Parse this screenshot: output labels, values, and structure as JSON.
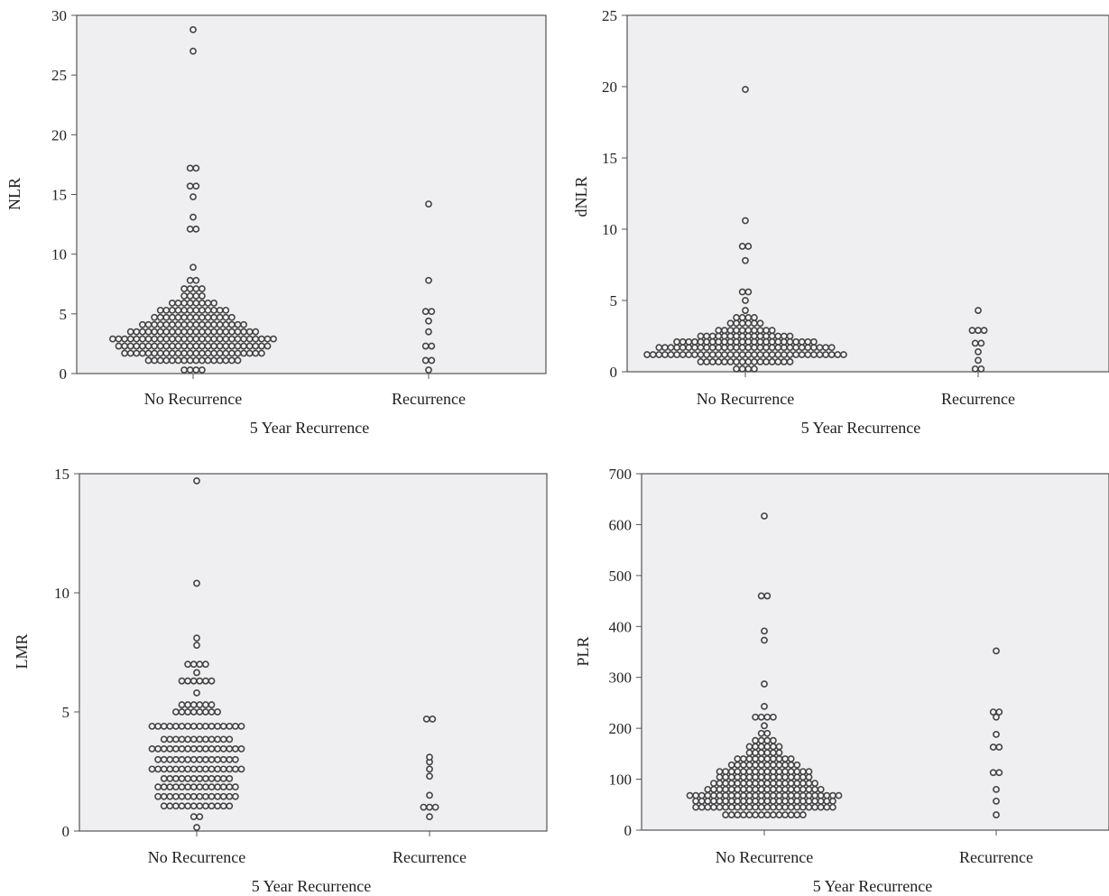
{
  "chart_data": [
    {
      "type": "scatter",
      "title": "",
      "xlabel": "5 Year Recurrence",
      "ylabel": "NLR",
      "categories": [
        "No Recurrence",
        "Recurrence"
      ],
      "ylim": [
        0,
        30
      ],
      "yticks": [
        0,
        5,
        10,
        15,
        20,
        25,
        30
      ],
      "series": [
        {
          "category": "No Recurrence",
          "points": [
            {
              "y": 0.3,
              "n": 4
            },
            {
              "y": 1.1,
              "n": 16
            },
            {
              "y": 1.7,
              "n": 24
            },
            {
              "y": 2.3,
              "n": 26
            },
            {
              "y": 2.9,
              "n": 28
            },
            {
              "y": 3.5,
              "n": 22
            },
            {
              "y": 4.1,
              "n": 18
            },
            {
              "y": 4.7,
              "n": 14
            },
            {
              "y": 5.3,
              "n": 12
            },
            {
              "y": 5.9,
              "n": 8
            },
            {
              "y": 6.5,
              "n": 4
            },
            {
              "y": 7.1,
              "n": 4
            },
            {
              "y": 7.8,
              "n": 2
            },
            {
              "y": 8.9,
              "n": 1
            },
            {
              "y": 12.1,
              "n": 2
            },
            {
              "y": 13.1,
              "n": 1
            },
            {
              "y": 14.8,
              "n": 1
            },
            {
              "y": 15.7,
              "n": 2
            },
            {
              "y": 17.2,
              "n": 2
            },
            {
              "y": 27.0,
              "n": 1
            },
            {
              "y": 28.8,
              "n": 1
            }
          ]
        },
        {
          "category": "Recurrence",
          "points": [
            {
              "y": 0.3,
              "n": 1
            },
            {
              "y": 1.1,
              "n": 2
            },
            {
              "y": 2.3,
              "n": 2
            },
            {
              "y": 3.5,
              "n": 1
            },
            {
              "y": 4.4,
              "n": 1
            },
            {
              "y": 5.2,
              "n": 2
            },
            {
              "y": 7.8,
              "n": 1
            },
            {
              "y": 14.2,
              "n": 1
            }
          ]
        }
      ]
    },
    {
      "type": "scatter",
      "title": "",
      "xlabel": "5 Year Recurrence",
      "ylabel": "dNLR",
      "categories": [
        "No Recurrence",
        "Recurrence"
      ],
      "ylim": [
        0,
        25
      ],
      "yticks": [
        0,
        5,
        10,
        15,
        20,
        25
      ],
      "series": [
        {
          "category": "No Recurrence",
          "points": [
            {
              "y": 0.2,
              "n": 4
            },
            {
              "y": 0.7,
              "n": 16
            },
            {
              "y": 1.2,
              "n": 34
            },
            {
              "y": 1.7,
              "n": 30
            },
            {
              "y": 2.1,
              "n": 24
            },
            {
              "y": 2.5,
              "n": 16
            },
            {
              "y": 2.9,
              "n": 10
            },
            {
              "y": 3.4,
              "n": 6
            },
            {
              "y": 3.8,
              "n": 4
            },
            {
              "y": 4.3,
              "n": 1
            },
            {
              "y": 5.0,
              "n": 1
            },
            {
              "y": 5.6,
              "n": 2
            },
            {
              "y": 7.8,
              "n": 1
            },
            {
              "y": 8.8,
              "n": 2
            },
            {
              "y": 10.6,
              "n": 1
            },
            {
              "y": 19.8,
              "n": 1
            }
          ]
        },
        {
          "category": "Recurrence",
          "points": [
            {
              "y": 0.2,
              "n": 2
            },
            {
              "y": 0.8,
              "n": 1
            },
            {
              "y": 1.4,
              "n": 1
            },
            {
              "y": 2.0,
              "n": 2
            },
            {
              "y": 2.9,
              "n": 3
            },
            {
              "y": 4.3,
              "n": 1
            }
          ]
        }
      ]
    },
    {
      "type": "scatter",
      "title": "",
      "xlabel": "5 Year Recurrence",
      "ylabel": "LMR",
      "categories": [
        "No Recurrence",
        "Recurrence"
      ],
      "ylim": [
        0,
        15
      ],
      "yticks": [
        0,
        5,
        10,
        15
      ],
      "series": [
        {
          "category": "No Recurrence",
          "points": [
            {
              "y": 0.15,
              "n": 1
            },
            {
              "y": 0.6,
              "n": 2
            },
            {
              "y": 1.05,
              "n": 12
            },
            {
              "y": 1.45,
              "n": 14
            },
            {
              "y": 1.85,
              "n": 14
            },
            {
              "y": 2.2,
              "n": 12
            },
            {
              "y": 2.6,
              "n": 16
            },
            {
              "y": 3.0,
              "n": 14
            },
            {
              "y": 3.45,
              "n": 16
            },
            {
              "y": 3.85,
              "n": 12
            },
            {
              "y": 4.4,
              "n": 16
            },
            {
              "y": 5.0,
              "n": 8
            },
            {
              "y": 5.3,
              "n": 6
            },
            {
              "y": 5.8,
              "n": 1
            },
            {
              "y": 6.3,
              "n": 6
            },
            {
              "y": 6.65,
              "n": 1
            },
            {
              "y": 7.0,
              "n": 4
            },
            {
              "y": 7.8,
              "n": 1
            },
            {
              "y": 8.1,
              "n": 1
            },
            {
              "y": 10.4,
              "n": 1
            },
            {
              "y": 14.7,
              "n": 1
            }
          ]
        },
        {
          "category": "Recurrence",
          "points": [
            {
              "y": 0.6,
              "n": 1
            },
            {
              "y": 1.0,
              "n": 3
            },
            {
              "y": 1.5,
              "n": 1
            },
            {
              "y": 2.3,
              "n": 1
            },
            {
              "y": 2.6,
              "n": 1
            },
            {
              "y": 2.9,
              "n": 1
            },
            {
              "y": 3.1,
              "n": 1
            },
            {
              "y": 4.7,
              "n": 2
            }
          ]
        }
      ]
    },
    {
      "type": "scatter",
      "title": "",
      "xlabel": "5 Year Recurrence",
      "ylabel": "PLR",
      "categories": [
        "No Recurrence",
        "Recurrence"
      ],
      "ylim": [
        0,
        700
      ],
      "yticks": [
        0,
        100,
        200,
        300,
        400,
        500,
        600,
        700
      ],
      "series": [
        {
          "category": "No Recurrence",
          "points": [
            {
              "y": 30,
              "n": 14
            },
            {
              "y": 45,
              "n": 24
            },
            {
              "y": 57,
              "n": 24
            },
            {
              "y": 68,
              "n": 26
            },
            {
              "y": 80,
              "n": 20
            },
            {
              "y": 92,
              "n": 18
            },
            {
              "y": 104,
              "n": 16
            },
            {
              "y": 115,
              "n": 16
            },
            {
              "y": 128,
              "n": 12
            },
            {
              "y": 140,
              "n": 10
            },
            {
              "y": 152,
              "n": 6
            },
            {
              "y": 164,
              "n": 6
            },
            {
              "y": 176,
              "n": 4
            },
            {
              "y": 190,
              "n": 2
            },
            {
              "y": 205,
              "n": 1
            },
            {
              "y": 222,
              "n": 4
            },
            {
              "y": 243,
              "n": 1
            },
            {
              "y": 287,
              "n": 1
            },
            {
              "y": 373,
              "n": 1
            },
            {
              "y": 391,
              "n": 1
            },
            {
              "y": 460,
              "n": 2
            },
            {
              "y": 617,
              "n": 1
            }
          ]
        },
        {
          "category": "Recurrence",
          "points": [
            {
              "y": 30,
              "n": 1
            },
            {
              "y": 57,
              "n": 1
            },
            {
              "y": 80,
              "n": 1
            },
            {
              "y": 113,
              "n": 2
            },
            {
              "y": 163,
              "n": 2
            },
            {
              "y": 188,
              "n": 1
            },
            {
              "y": 222,
              "n": 1
            },
            {
              "y": 232,
              "n": 2
            },
            {
              "y": 352,
              "n": 1
            }
          ]
        }
      ]
    }
  ]
}
